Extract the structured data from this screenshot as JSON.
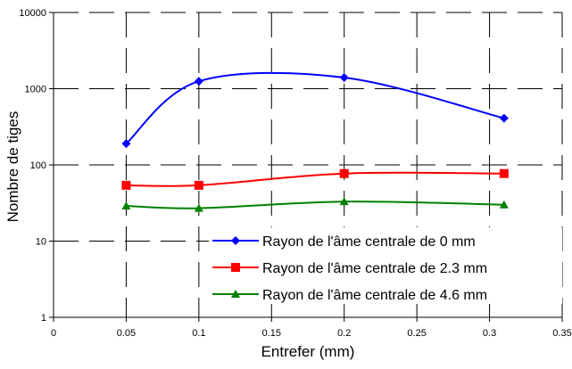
{
  "chart_data": {
    "type": "line",
    "title": "",
    "xlabel": "Entrefer (mm)",
    "ylabel": "Nombre de tiges",
    "xlim": [
      0,
      0.35
    ],
    "ylim": [
      1,
      10000
    ],
    "yscale": "log",
    "grid": true,
    "legend_position": "bottom-right",
    "x_ticks": [
      0,
      0.05,
      0.1,
      0.15,
      0.2,
      0.25,
      0.3,
      0.35
    ],
    "x_tick_labels": [
      "0",
      "0.05",
      "0.1",
      "0.15",
      "0.2",
      "0.25",
      "0.3",
      "0.35"
    ],
    "y_ticks": [
      1,
      10,
      100,
      1000,
      10000
    ],
    "y_tick_labels": [
      "1",
      "10",
      "100",
      "1000",
      "10000"
    ],
    "series": [
      {
        "name": "Rayon de l'âme centrale de 0 mm",
        "color": "#0000ff",
        "marker": "diamond",
        "x": [
          0.05,
          0.1,
          0.2,
          0.31
        ],
        "y": [
          190,
          1250,
          1400,
          410
        ]
      },
      {
        "name": "Rayon de l'âme centrale de 2.3 mm",
        "color": "#ff0000",
        "marker": "square",
        "x": [
          0.05,
          0.1,
          0.2,
          0.31
        ],
        "y": [
          54,
          54,
          77,
          77
        ]
      },
      {
        "name": "Rayon de l'âme centrale de 4.6 mm",
        "color": "#008000",
        "marker": "triangle",
        "x": [
          0.05,
          0.1,
          0.2,
          0.31
        ],
        "y": [
          29,
          27,
          33,
          30
        ]
      }
    ]
  }
}
